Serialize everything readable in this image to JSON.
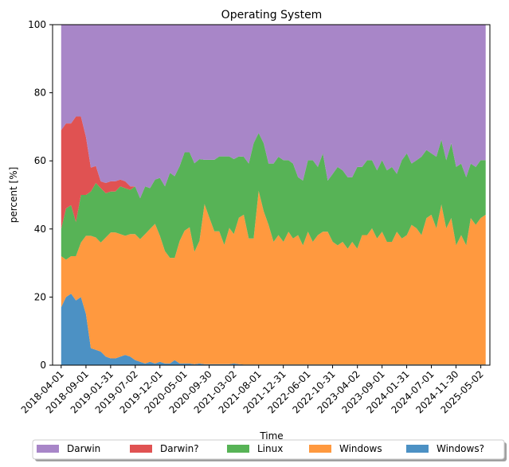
{
  "chart_data": {
    "type": "area",
    "stacked": true,
    "title": "Operating System",
    "xlabel": "Time",
    "ylabel": "percent [%]",
    "ylim": [
      0,
      100
    ],
    "yticks": [
      0,
      20,
      40,
      60,
      80,
      100
    ],
    "xlim": [
      "2018-02-07",
      "2025-06-27"
    ],
    "xticks": [
      "2018-04-01",
      "2018-09-01",
      "2019-01-31",
      "2019-07-02",
      "2019-12-01",
      "2020-05-01",
      "2020-09-30",
      "2021-03-02",
      "2021-08-01",
      "2021-12-31",
      "2022-06-01",
      "2022-10-31",
      "2023-04-02",
      "2023-09-01",
      "2024-01-31",
      "2024-07-01",
      "2024-11-30",
      "2025-05-02"
    ],
    "grid": false,
    "legend_position": "bottom",
    "x": [
      "2018-04-01",
      "2018-05-01",
      "2018-06-01",
      "2018-07-01",
      "2018-08-01",
      "2018-09-01",
      "2018-10-01",
      "2018-11-01",
      "2018-12-01",
      "2019-01-01",
      "2019-02-01",
      "2019-03-01",
      "2019-04-01",
      "2019-05-01",
      "2019-06-01",
      "2019-07-01",
      "2019-08-01",
      "2019-09-01",
      "2019-10-01",
      "2019-11-01",
      "2019-12-01",
      "2020-01-01",
      "2020-02-01",
      "2020-03-01",
      "2020-04-01",
      "2020-05-01",
      "2020-06-01",
      "2020-07-01",
      "2020-08-01",
      "2020-09-01",
      "2020-10-01",
      "2020-11-01",
      "2020-12-01",
      "2021-01-01",
      "2021-02-01",
      "2021-03-01",
      "2021-04-01",
      "2021-05-01",
      "2021-06-01",
      "2021-07-01",
      "2021-08-01",
      "2021-09-01",
      "2021-10-01",
      "2021-11-01",
      "2021-12-01",
      "2022-01-01",
      "2022-02-01",
      "2022-03-01",
      "2022-04-01",
      "2022-05-01",
      "2022-06-01",
      "2022-07-01",
      "2022-08-01",
      "2022-09-01",
      "2022-10-01",
      "2022-11-01",
      "2022-12-01",
      "2023-01-01",
      "2023-02-01",
      "2023-03-01",
      "2023-04-01",
      "2023-05-01",
      "2023-06-01",
      "2023-07-01",
      "2023-08-01",
      "2023-09-01",
      "2023-10-01",
      "2023-11-01",
      "2023-12-01",
      "2024-01-01",
      "2024-02-01",
      "2024-03-01",
      "2024-04-01",
      "2024-05-01",
      "2024-06-01",
      "2024-07-01",
      "2024-08-01",
      "2024-09-01",
      "2024-10-01",
      "2024-11-01",
      "2024-12-01",
      "2025-01-01",
      "2025-02-01",
      "2025-03-01",
      "2025-04-01",
      "2025-05-01",
      "2025-06-01"
    ],
    "series": [
      {
        "name": "Windows?",
        "color": "#4c91c4",
        "values": [
          17,
          20,
          21,
          19,
          20,
          15,
          5,
          4.5,
          4,
          2.5,
          2,
          2,
          2.5,
          3,
          2.5,
          1.5,
          1,
          0.5,
          1,
          0.5,
          1,
          0.5,
          0.5,
          1.5,
          0.5,
          0.5,
          0.5,
          0.3,
          0.5,
          0.3,
          0.3,
          0.3,
          0.3,
          0.3,
          0.3,
          0.5,
          0.3,
          0.2,
          0.2,
          0.2,
          0.2,
          0.2,
          0.2,
          0.2,
          0.2,
          0.2,
          0.2,
          0.2,
          0.2,
          0.2,
          0.2,
          0.2,
          0.2,
          0.2,
          0.2,
          0.2,
          0.2,
          0.2,
          0.2,
          0.2,
          0.2,
          0.2,
          0.2,
          0.2,
          0.2,
          0.2,
          0.2,
          0.2,
          0.2,
          0.2,
          0.2,
          0.2,
          0.2,
          0.2,
          0.2,
          0.2,
          0.2,
          0.2,
          0.2,
          0.2,
          0.2,
          0.2,
          0.2,
          0.2,
          0.2,
          0.2,
          0.2
        ]
      },
      {
        "name": "Windows",
        "color": "#ff993f",
        "values": [
          15,
          11,
          11,
          13,
          16,
          23,
          33,
          33,
          32,
          35,
          37,
          37,
          36,
          35,
          36,
          37,
          36,
          38,
          39,
          41,
          37,
          33,
          31,
          30,
          36,
          39,
          40,
          33,
          36,
          47,
          43,
          39,
          39,
          35,
          40,
          38,
          43,
          44,
          37,
          37,
          51,
          45,
          41,
          36,
          38,
          36,
          39,
          37,
          38,
          35,
          39,
          36,
          38,
          39,
          39,
          36,
          35,
          36,
          34,
          36,
          34,
          38,
          38,
          40,
          37,
          39,
          36,
          36,
          39,
          37,
          38,
          41,
          40,
          38,
          43,
          44,
          40,
          47,
          40,
          43,
          35,
          38,
          35,
          43,
          41,
          43,
          44
        ]
      },
      {
        "name": "Linux",
        "color": "#57b356",
        "values": [
          8,
          15,
          15,
          10,
          14,
          12,
          13,
          16,
          16,
          13,
          12,
          12,
          14,
          14,
          13,
          14,
          12,
          14,
          12,
          13,
          17,
          19,
          25,
          24,
          22,
          23,
          22,
          26,
          24,
          13,
          17,
          21,
          22,
          26,
          21,
          22,
          18,
          17,
          22,
          28,
          17,
          20,
          18,
          23,
          23,
          24,
          21,
          22,
          17,
          19,
          21,
          24,
          20,
          23,
          15,
          20,
          23,
          21,
          21,
          19,
          24,
          20,
          22,
          20,
          20,
          21,
          21,
          22,
          17,
          23,
          24,
          18,
          20,
          23,
          20,
          18,
          21,
          19,
          20,
          22,
          23,
          21,
          20,
          16,
          17,
          17,
          16
        ]
      },
      {
        "name": "Darwin?",
        "color": "#e05252",
        "values": [
          29,
          25,
          24,
          31,
          23,
          17,
          7,
          5,
          2,
          3,
          3,
          3,
          2,
          2,
          1,
          0,
          0,
          0,
          0,
          0,
          0,
          0,
          0,
          0,
          0,
          0,
          0,
          0,
          0,
          0,
          0,
          0,
          0,
          0,
          0,
          0,
          0,
          0,
          0,
          0,
          0,
          0,
          0,
          0,
          0,
          0,
          0,
          0,
          0,
          0,
          0,
          0,
          0,
          0,
          0,
          0,
          0,
          0,
          0,
          0,
          0,
          0,
          0,
          0,
          0,
          0,
          0,
          0,
          0,
          0,
          0,
          0,
          0,
          0,
          0,
          0,
          0,
          0,
          0,
          0,
          0,
          0,
          0,
          0,
          0,
          0,
          0
        ]
      },
      {
        "name": "Darwin",
        "color": "#a886c8",
        "values": [
          31,
          29,
          29,
          27,
          27,
          33,
          42,
          41.5,
          46,
          46.5,
          46,
          46,
          45.5,
          46,
          47.5,
          47.5,
          51,
          47.5,
          48,
          45.5,
          45,
          47.5,
          43.5,
          44.5,
          41.5,
          37.5,
          37.5,
          40.7,
          39.5,
          39.7,
          39.7,
          39.7,
          38.7,
          38.7,
          38.7,
          39.5,
          38.7,
          38.8,
          40.8,
          34.8,
          31.8,
          34.8,
          40.8,
          40.8,
          38.8,
          39.8,
          39.8,
          40.8,
          44.8,
          45.8,
          39.8,
          39.8,
          41.8,
          37.8,
          45.8,
          43.8,
          41.8,
          42.8,
          44.8,
          44.8,
          41.8,
          41.8,
          39.8,
          39.8,
          42.8,
          39.8,
          42.8,
          41.8,
          43.8,
          39.8,
          37.8,
          40.8,
          39.8,
          38.8,
          36.8,
          37.8,
          38.8,
          33.8,
          39.8,
          34.8,
          41.8,
          40.8,
          44.8,
          40.8,
          41.8,
          39.8,
          39.8
        ]
      }
    ],
    "legend": [
      "Darwin",
      "Darwin?",
      "Linux",
      "Windows",
      "Windows?"
    ]
  }
}
